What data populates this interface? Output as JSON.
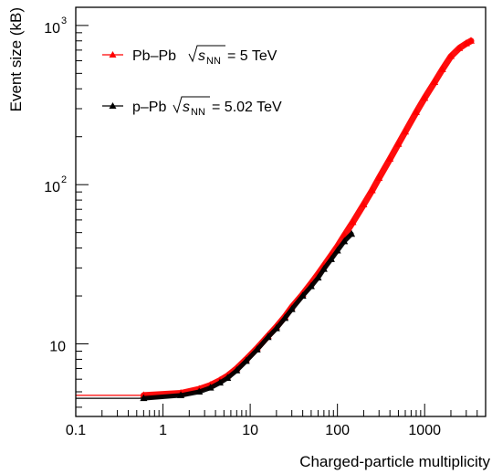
{
  "chart_data": {
    "type": "scatter",
    "title": "",
    "xlabel": "Charged-particle multiplicity",
    "ylabel": "Event size (kB)",
    "xscale": "log",
    "yscale": "log",
    "xlim": [
      0.1,
      5000
    ],
    "ylim": [
      3.5,
      1300
    ],
    "grid": false,
    "legend_position": "top-left",
    "x_ticks": [
      {
        "value": 0.1,
        "label": "0.1"
      },
      {
        "value": 1,
        "label": "1"
      },
      {
        "value": 10,
        "label": "10"
      },
      {
        "value": 100,
        "label": "100"
      },
      {
        "value": 1000,
        "label": "1000"
      }
    ],
    "y_ticks": [
      {
        "value": 10,
        "base": "10",
        "exp": ""
      },
      {
        "value": 100,
        "base": "10",
        "exp": "2"
      },
      {
        "value": 1000,
        "base": "10",
        "exp": "3"
      }
    ],
    "series": [
      {
        "name": "Pb–Pb",
        "legend_energy": "= 5 TeV",
        "color": "#ff0000",
        "first_bin_x_range": [
          0.1,
          1.0
        ],
        "x": [
          0.6,
          1.6,
          2.6,
          3.5,
          4.5,
          5.5,
          7,
          9,
          12,
          16,
          20,
          25,
          30,
          40,
          50,
          60,
          70,
          85,
          100,
          120,
          150,
          200,
          250,
          300,
          400,
          500,
          600,
          800,
          1000,
          1300,
          1600,
          2000,
          2500,
          3000,
          3400
        ],
        "y": [
          4.75,
          4.9,
          5.2,
          5.5,
          5.9,
          6.3,
          7.0,
          8.0,
          9.4,
          11.2,
          12.8,
          14.8,
          17.0,
          20.5,
          24.0,
          27.5,
          31.0,
          36.0,
          41.0,
          48.0,
          58.0,
          75.0,
          92.0,
          110.0,
          145.0,
          180.0,
          215.0,
          285.0,
          350.0,
          440.0,
          530.0,
          640.0,
          720.0,
          770.0,
          800.0
        ]
      },
      {
        "name": "p–Pb",
        "legend_energy": "= 5.02 TeV",
        "color": "#000000",
        "first_bin_x_range": [
          0.1,
          1.0
        ],
        "x": [
          0.6,
          1.6,
          2.6,
          3.5,
          4.5,
          5.5,
          7,
          9,
          12,
          16,
          20,
          25,
          30,
          40,
          50,
          60,
          70,
          85,
          100,
          120,
          145
        ],
        "y": [
          4.55,
          4.75,
          5.0,
          5.3,
          5.7,
          6.1,
          6.8,
          7.8,
          9.2,
          11.0,
          12.5,
          14.5,
          16.5,
          20.0,
          23.0,
          26.0,
          29.5,
          34.0,
          38.5,
          44.0,
          49.0
        ]
      }
    ],
    "legend_sqrt_symbol": "s",
    "legend_sqrt_subscript": "NN"
  }
}
